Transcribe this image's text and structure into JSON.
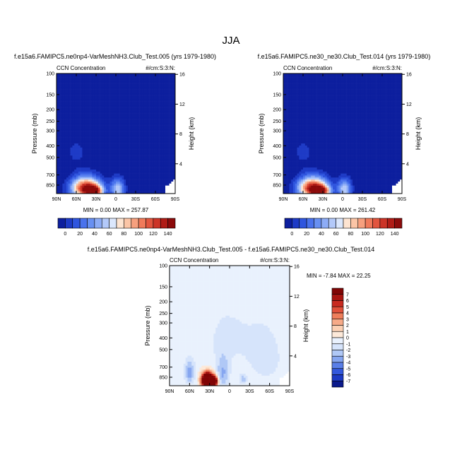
{
  "figure": {
    "title": "JJA"
  },
  "chart_data": [
    {
      "type": "contour",
      "title": "f.e15a6.FAMIPC5.ne0np4-VarMeshNH3.Club_Test.005 (yrs 1979-1980)",
      "left_string": "CCN Concentration",
      "right_string": "#/cm:S:3:N:",
      "xlabel": "",
      "ylabel": "Pressure (mb)",
      "y2label": "Height (km)",
      "x_ticks": [
        "90N",
        "60N",
        "30N",
        "0",
        "30S",
        "60S",
        "90S"
      ],
      "y_ticks": [
        100,
        150,
        200,
        250,
        300,
        400,
        500,
        700,
        850
      ],
      "y2_ticks": [
        4,
        8,
        12,
        16
      ],
      "ylim": [
        1000,
        100
      ],
      "min_label": "MIN =   0.00  MAX = 257.87",
      "min": 0.0,
      "max": 257.87,
      "colorbar": {
        "orientation": "horizontal",
        "labels": [
          "0",
          "20",
          "40",
          "60",
          "80",
          "100",
          "120",
          "140"
        ],
        "levels": [
          0,
          10,
          20,
          30,
          40,
          50,
          60,
          70,
          80,
          90,
          100,
          110,
          120,
          130,
          140,
          150
        ],
        "colors": [
          "#0d1f9e",
          "#1e3bc6",
          "#2f55de",
          "#4a72ec",
          "#6890f2",
          "#8dacf6",
          "#b3c9f9",
          "#dbe7fc",
          "#fde4d1",
          "#fbc5a6",
          "#f7a07e",
          "#f07a5a",
          "#e2553e",
          "#cc3427",
          "#b01c16",
          "#8c0b0b"
        ]
      },
      "sources": [
        {
          "lat": 45,
          "pressure": 900,
          "amp": 150,
          "sx": 22,
          "sp": 170
        },
        {
          "lat": 33,
          "pressure": 960,
          "amp": 110,
          "sx": 12,
          "sp": 90
        },
        {
          "lat": -3,
          "pressure": 920,
          "amp": 70,
          "sx": 10,
          "sp": 170
        },
        {
          "lat": 60,
          "pressure": 450,
          "amp": 12,
          "sx": 20,
          "sp": 150
        }
      ]
    },
    {
      "type": "contour",
      "title": "f.e15a6.FAMIPC5.ne30_ne30.Club_Test.014 (yrs 1979-1980)",
      "left_string": "CCN Concentration",
      "right_string": "#/cm:S:3:N:",
      "xlabel": "",
      "ylabel": "Pressure (mb)",
      "y2label": "Height (km)",
      "x_ticks": [
        "90N",
        "60N",
        "30N",
        "0",
        "30S",
        "60S",
        "90S"
      ],
      "y_ticks": [
        100,
        150,
        200,
        250,
        300,
        400,
        500,
        700,
        850
      ],
      "y2_ticks": [
        4,
        8,
        12,
        16
      ],
      "ylim": [
        1000,
        100
      ],
      "min_label": "MIN =   0.00  MAX = 261.42",
      "min": 0.0,
      "max": 261.42,
      "colorbar": {
        "orientation": "horizontal",
        "labels": [
          "0",
          "20",
          "40",
          "60",
          "80",
          "100",
          "120",
          "140"
        ],
        "levels": [
          0,
          10,
          20,
          30,
          40,
          50,
          60,
          70,
          80,
          90,
          100,
          110,
          120,
          130,
          140,
          150
        ],
        "colors": [
          "#0d1f9e",
          "#1e3bc6",
          "#2f55de",
          "#4a72ec",
          "#6890f2",
          "#8dacf6",
          "#b3c9f9",
          "#dbe7fc",
          "#fde4d1",
          "#fbc5a6",
          "#f7a07e",
          "#f07a5a",
          "#e2553e",
          "#cc3427",
          "#b01c16",
          "#8c0b0b"
        ]
      },
      "sources": [
        {
          "lat": 45,
          "pressure": 900,
          "amp": 152,
          "sx": 22,
          "sp": 170
        },
        {
          "lat": 33,
          "pressure": 960,
          "amp": 112,
          "sx": 12,
          "sp": 90
        },
        {
          "lat": -3,
          "pressure": 920,
          "amp": 70,
          "sx": 10,
          "sp": 170
        },
        {
          "lat": 60,
          "pressure": 450,
          "amp": 12,
          "sx": 20,
          "sp": 150
        }
      ]
    },
    {
      "type": "contour",
      "title": "f.e15a6.FAMIPC5.ne0np4-VarMeshNH3.Club_Test.005 - f.e15a6.FAMIPC5.ne30_ne30.Club_Test.014",
      "left_string": "CCN Concentration",
      "right_string": "#/cm:S:3:N:",
      "xlabel": "",
      "ylabel": "Pressure (mb)",
      "y2label": "Height (km)",
      "x_ticks": [
        "90N",
        "60N",
        "30N",
        "0",
        "30S",
        "60S",
        "90S"
      ],
      "y_ticks": [
        100,
        150,
        200,
        250,
        300,
        400,
        500,
        700,
        850
      ],
      "y2_ticks": [
        4,
        8,
        12,
        16
      ],
      "ylim": [
        1000,
        100
      ],
      "min_label": "MIN = -7.84  MAX = 22.25",
      "min": -7.84,
      "max": 22.25,
      "colorbar": {
        "orientation": "vertical",
        "labels": [
          "7",
          "6",
          "5",
          "4",
          "3",
          "2",
          "1",
          "0",
          "-1",
          "-2",
          "-3",
          "-4",
          "-5",
          "-6",
          "-7"
        ],
        "levels": [
          -8,
          -7,
          -6,
          -5,
          -4,
          -3,
          -2,
          -1,
          0,
          1,
          2,
          3,
          4,
          5,
          6,
          7,
          8
        ],
        "colors": [
          "#0b1a8c",
          "#1d3ac4",
          "#3358dc",
          "#5a7fe8",
          "#86a6f0",
          "#b0c8f6",
          "#d6e4fb",
          "#e9f1fd",
          "#fde9d9",
          "#fbd0b4",
          "#f6aa88",
          "#ee7e5b",
          "#e0503a",
          "#c82a20",
          "#a81410",
          "#800505"
        ]
      },
      "sources": [
        {
          "lat": 33,
          "pressure": 900,
          "amp": 22,
          "sx": 8,
          "sp": 110
        },
        {
          "lat": 22,
          "pressure": 920,
          "amp": 9,
          "sx": 5,
          "sp": 90
        },
        {
          "lat": 60,
          "pressure": 780,
          "amp": -3.5,
          "sx": 8,
          "sp": 180
        },
        {
          "lat": 10,
          "pressure": 800,
          "amp": -3,
          "sx": 10,
          "sp": 250
        },
        {
          "lat": -55,
          "pressure": 600,
          "amp": -1.6,
          "sx": 25,
          "sp": 300
        },
        {
          "lat": 0,
          "pressure": 400,
          "amp": -1.2,
          "sx": 50,
          "sp": 300
        },
        {
          "lat": -20,
          "pressure": 880,
          "amp": -2.5,
          "sx": 6,
          "sp": 80
        }
      ]
    }
  ]
}
